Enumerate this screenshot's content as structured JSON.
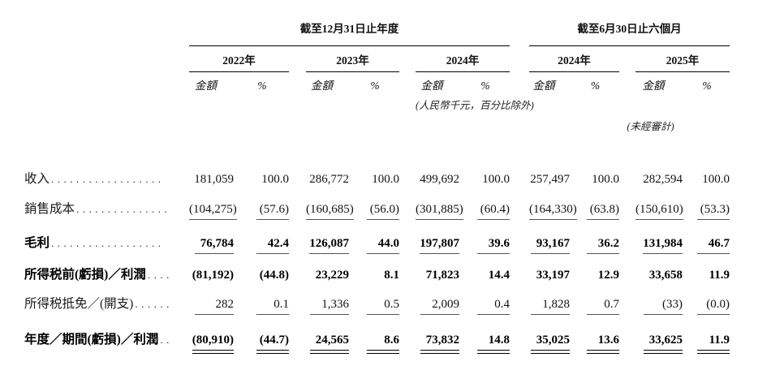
{
  "table": {
    "sections": [
      {
        "title": "截至12月31日止年度",
        "years": [
          "2022年",
          "2023年",
          "2024年"
        ]
      },
      {
        "title": "截至6月30日止六個月",
        "years": [
          "2024年",
          "2025年"
        ]
      }
    ],
    "col_headers": {
      "amount": "金額",
      "percent": "%"
    },
    "notes": {
      "units": "(人民幣千元，百分比除外)",
      "unaudited": "(未經審計)"
    },
    "rows": [
      {
        "label": "收入",
        "leader": "..................",
        "bold": false,
        "underline": "none",
        "values": [
          "181,059",
          "100.0",
          "286,772",
          "100.0",
          "499,692",
          "100.0",
          "257,497",
          "100.0",
          "282,594",
          "100.0"
        ]
      },
      {
        "label": "銷售成本",
        "leader": "...............",
        "bold": false,
        "underline": "single",
        "values": [
          "(104,275)",
          "(57.6)",
          "(160,685)",
          "(56.0)",
          "(301,885)",
          "(60.4)",
          "(164,330)",
          "(63.8)",
          "(150,610)",
          "(53.3)"
        ]
      },
      {
        "label": "毛利",
        "leader": "..................",
        "bold": true,
        "underline": "single",
        "values": [
          "76,784",
          "42.4",
          "126,087",
          "44.0",
          "197,807",
          "39.6",
          "93,167",
          "36.2",
          "131,984",
          "46.7"
        ]
      },
      {
        "label": "所得税前(虧損)／利潤",
        "leader": "....",
        "bold": true,
        "underline": "none",
        "values": [
          "(81,192)",
          "(44.8)",
          "23,229",
          "8.1",
          "71,823",
          "14.4",
          "33,197",
          "12.9",
          "33,658",
          "11.9"
        ]
      },
      {
        "label": "所得税抵免／(開支)",
        "leader": "......",
        "bold": false,
        "underline": "single",
        "values": [
          "282",
          "0.1",
          "1,336",
          "0.5",
          "2,009",
          "0.4",
          "1,828",
          "0.7",
          "(33)",
          "(0.0)"
        ]
      },
      {
        "label": "年度／期間(虧損)／利潤",
        "leader": "..",
        "bold": true,
        "underline": "double",
        "values": [
          "(80,910)",
          "(44.7)",
          "24,565",
          "8.6",
          "73,832",
          "14.8",
          "35,025",
          "13.6",
          "33,625",
          "11.9"
        ]
      }
    ]
  }
}
